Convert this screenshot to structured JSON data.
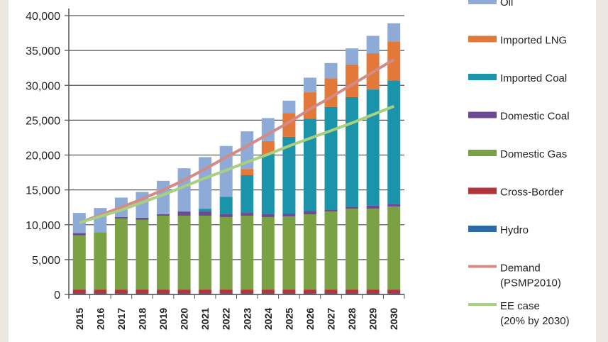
{
  "chart_data": {
    "type": "bar",
    "stacked": true,
    "categories": [
      "2015",
      "2016",
      "2017",
      "2018",
      "2019",
      "2020",
      "2021",
      "2022",
      "2023",
      "2024",
      "2025",
      "2026",
      "2027",
      "2028",
      "2029",
      "2030"
    ],
    "ylim": [
      0,
      40000
    ],
    "yticks": [
      "0",
      "5,000",
      "10,000",
      "15,000",
      "20,000",
      "25,000",
      "30,000",
      "35,000",
      "40,000"
    ],
    "grid": true,
    "legend_position": "right",
    "series": [
      {
        "name": "Hydro",
        "color": "#2e6aa8",
        "values": [
          200,
          200,
          200,
          200,
          200,
          200,
          200,
          200,
          200,
          200,
          200,
          200,
          200,
          200,
          200,
          200
        ]
      },
      {
        "name": "Cross-Border",
        "color": "#b2353a",
        "values": [
          500,
          500,
          500,
          500,
          500,
          500,
          500,
          500,
          500,
          500,
          500,
          500,
          500,
          500,
          500,
          500
        ]
      },
      {
        "name": "Domestic Gas",
        "color": "#7aa245",
        "values": [
          7800,
          8200,
          10200,
          10000,
          10600,
          10600,
          10600,
          10400,
          10600,
          10400,
          10500,
          10800,
          11200,
          11600,
          11600,
          11900
        ]
      },
      {
        "name": "Domestic Coal",
        "color": "#6c4a96",
        "values": [
          300,
          0,
          200,
          300,
          200,
          600,
          600,
          400,
          400,
          400,
          400,
          500,
          300,
          300,
          500,
          400
        ]
      },
      {
        "name": "Imported Coal",
        "color": "#1b93ab",
        "values": [
          0,
          0,
          0,
          0,
          0,
          0,
          400,
          2500,
          5400,
          8600,
          11000,
          13200,
          14700,
          15700,
          16600,
          17700
        ]
      },
      {
        "name": "Imported LNG",
        "color": "#e2793a",
        "values": [
          0,
          0,
          0,
          0,
          0,
          0,
          0,
          0,
          900,
          1900,
          3400,
          3800,
          4100,
          4700,
          5200,
          5600
        ]
      },
      {
        "name": "Oil",
        "color": "#8eaad6",
        "values": [
          2900,
          3500,
          2800,
          3700,
          4800,
          6200,
          7400,
          7300,
          5400,
          3300,
          1800,
          2100,
          2200,
          2300,
          2500,
          2600
        ]
      }
    ],
    "lines": [
      {
        "name": "Demand (PSMP2010)",
        "label_lines": [
          "Demand",
          "(PSMP2010)"
        ],
        "color": "#d48a86",
        "values": [
          10300,
          11400,
          12500,
          13700,
          15000,
          16400,
          18000,
          19700,
          21300,
          23000,
          24700,
          26600,
          28300,
          30100,
          31900,
          33700
        ]
      },
      {
        "name": "EE case (20% by 2030)",
        "label_lines": [
          "EE case",
          "(20% by 2030)"
        ],
        "color": "#a9cf80",
        "values": [
          10300,
          11200,
          12100,
          13200,
          14300,
          15500,
          16700,
          17800,
          19000,
          20100,
          21300,
          22400,
          23500,
          24600,
          25800,
          27000
        ]
      }
    ],
    "legend_order": [
      "Oil",
      "Imported LNG",
      "Imported Coal",
      "Domestic Coal",
      "Domestic Gas",
      "Cross-Border",
      "Hydro",
      "Demand (PSMP2010)",
      "EE case (20% by 2030)"
    ]
  }
}
